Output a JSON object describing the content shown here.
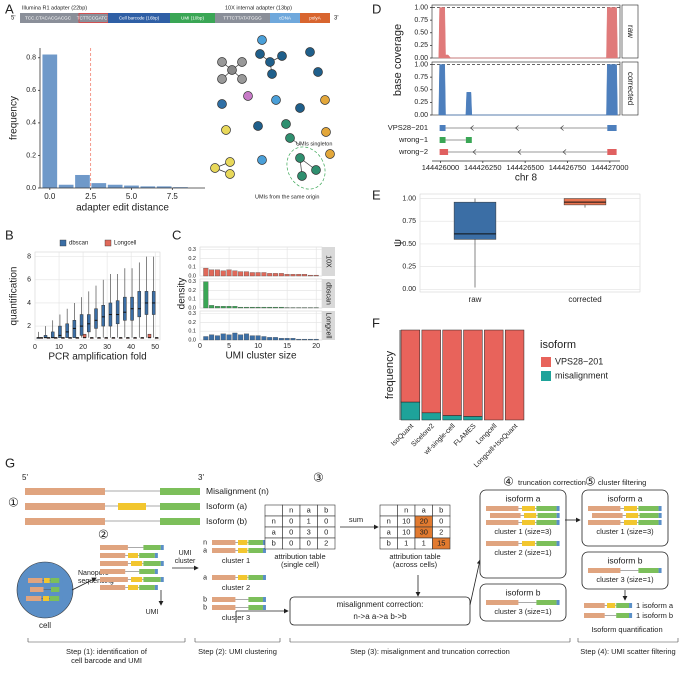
{
  "chart_data": [
    {
      "type": "bar",
      "xlabel": "adapter edit distance",
      "ylabel": "frequency",
      "color": "#6f99c9",
      "x": [
        0,
        1,
        2,
        3,
        4,
        5,
        6,
        7,
        8
      ],
      "values": [
        0.82,
        0.02,
        0.08,
        0.03,
        0.02,
        0.015,
        0.01,
        0.01,
        0.005
      ],
      "xlim": [
        -0.6,
        9.5
      ],
      "ylim": [
        0,
        0.86
      ],
      "xticks": [
        {
          "value": 0,
          "label": "0.0"
        },
        2.5,
        {
          "value": 5,
          "label": "5.0"
        },
        7.5
      ],
      "yticks": [
        {
          "value": 0,
          "label": "0.0"
        },
        0.2,
        0.4,
        0.6,
        0.8
      ],
      "vline": 2.5,
      "vline_color": "#f08070",
      "grid": false
    },
    {
      "type": "box",
      "xlabel": "PCR amplification fold",
      "ylabel": "quantification",
      "legend": "top",
      "grid": true,
      "x": [
        2,
        5,
        8,
        11,
        14,
        17,
        20,
        23,
        26,
        29,
        32,
        35,
        38,
        41,
        44,
        47,
        50
      ],
      "xlim": [
        0,
        52
      ],
      "ylim": [
        0.8,
        8.4
      ],
      "xticks": [
        0,
        10,
        20,
        30,
        40,
        50
      ],
      "yticks": [
        2,
        4,
        6,
        8
      ],
      "series": [
        {
          "name": "dbscan",
          "color": "#3b6ea5",
          "min": [
            1,
            1,
            1,
            1,
            1,
            1,
            1,
            1,
            1,
            1,
            1,
            1,
            1,
            1,
            1,
            1,
            1
          ],
          "q1": [
            1,
            1,
            1,
            1,
            1,
            1,
            1.2,
            1.5,
            1.8,
            2,
            2,
            2.2,
            2.5,
            2.5,
            2.8,
            3,
            3
          ],
          "median": [
            1,
            1,
            1,
            1.2,
            1.5,
            1.8,
            2,
            2.2,
            2.5,
            2.8,
            3,
            3,
            3.2,
            3.5,
            3.5,
            4,
            4
          ],
          "q3": [
            1,
            1.2,
            1.5,
            2,
            2.2,
            2.5,
            3,
            3,
            3.5,
            3.8,
            4,
            4.2,
            4.5,
            4.5,
            5,
            5,
            5
          ],
          "max": [
            1.5,
            2,
            2.5,
            3,
            3.5,
            4,
            4.5,
            5,
            5.5,
            6,
            6.5,
            6.5,
            7,
            7,
            7.5,
            8,
            8
          ]
        },
        {
          "name": "Longcell",
          "color": "#e0695a",
          "min": [
            1,
            1,
            1,
            1,
            1,
            1,
            1,
            1,
            1,
            1,
            1,
            1,
            1,
            1,
            1,
            1,
            1
          ],
          "q1": [
            1,
            1,
            1,
            1,
            1,
            1,
            1,
            1,
            1,
            1,
            1,
            1,
            1,
            1,
            1,
            1,
            1
          ],
          "median": [
            1,
            1,
            1,
            1,
            1,
            1,
            1,
            1,
            1,
            1,
            1,
            1,
            1,
            1,
            1,
            1,
            1
          ],
          "q3": [
            1,
            1,
            1,
            1,
            1,
            1,
            1.3,
            1,
            1,
            1,
            1,
            1,
            1,
            1,
            1,
            1.3,
            1
          ],
          "max": [
            1,
            1,
            1,
            1,
            1,
            1,
            1.3,
            1,
            1,
            1,
            1,
            1,
            1,
            1,
            1,
            1.3,
            1
          ]
        }
      ]
    },
    {
      "type": "facet_bar",
      "xlabel": "UMI cluster size",
      "ylabel": "density",
      "grid": true,
      "x": [
        1,
        2,
        3,
        4,
        5,
        6,
        7,
        8,
        9,
        10,
        11,
        12,
        13,
        14,
        15,
        16,
        17,
        18,
        19,
        20
      ],
      "xlim": [
        0,
        21
      ],
      "ylim": [
        0,
        0.33
      ],
      "xticks": [
        0,
        5,
        10,
        15,
        20
      ],
      "yticks": [
        {
          "value": 0,
          "label": "0.0"
        },
        0.1,
        0.2,
        0.3
      ],
      "series": [
        {
          "name": "10X",
          "color": "#e0695a",
          "values": [
            0.09,
            0.07,
            0.07,
            0.06,
            0.07,
            0.06,
            0.05,
            0.05,
            0.04,
            0.04,
            0.04,
            0.03,
            0.03,
            0.03,
            0.02,
            0.02,
            0.02,
            0.02,
            0.01,
            0.01
          ]
        },
        {
          "name": "dbscan",
          "color": "#3aa655",
          "values": [
            0.3,
            0.03,
            0.02,
            0.02,
            0.02,
            0.02,
            0.01,
            0.01,
            0.01,
            0.01,
            0.01,
            0.01,
            0.01,
            0.01,
            0.005,
            0.005,
            0.005,
            0.005,
            0.005,
            0.005
          ]
        },
        {
          "name": "Longcell",
          "color": "#3b6ea5",
          "values": [
            0.04,
            0.06,
            0.05,
            0.07,
            0.06,
            0.08,
            0.06,
            0.07,
            0.05,
            0.05,
            0.04,
            0.03,
            0.03,
            0.02,
            0.02,
            0.02,
            0.01,
            0.01,
            0.01,
            0.01
          ]
        }
      ]
    },
    {
      "type": "area",
      "xlabel": "chr 8",
      "ylabel": "base coverage",
      "hline": 1,
      "xlim": [
        144425950,
        144427060
      ],
      "ylim": [
        0,
        1.05
      ],
      "xticks": [
        144426000,
        144426250,
        144426500,
        144426750,
        144427000
      ],
      "yticks": [
        {
          "value": 0,
          "label": "0.00"
        },
        {
          "value": 0.25,
          "label": "0.25"
        },
        {
          "value": 0.5,
          "label": "0.50"
        },
        {
          "value": 0.75,
          "label": "0.75"
        },
        {
          "value": 1,
          "label": "1.00"
        }
      ],
      "series": [
        {
          "name": "raw",
          "color": "#e07a7a",
          "x": [
            144425990,
            144425995,
            144426025,
            144426030,
            144426045,
            144426060,
            144426980,
            144426985,
            144427040,
            144427045
          ],
          "values": [
            0,
            1,
            1,
            0.06,
            0.06,
            0,
            0,
            1,
            1,
            0
          ]
        },
        {
          "name": "corrected",
          "color": "#4d7fbd",
          "x": [
            144425990,
            144425995,
            144426025,
            144426030,
            144426150,
            144426155,
            144426180,
            144426185,
            144426980,
            144426985,
            144427040,
            144427045
          ],
          "values": [
            0,
            1,
            1,
            0,
            0,
            0.45,
            0.45,
            0,
            0,
            1,
            1,
            0
          ]
        }
      ],
      "isoforms": [
        {
          "name": "VPS28−201",
          "color": "#4d7fbd",
          "exons": [
            [
              144425995,
              144426030
            ],
            [
              144426985,
              144427040
            ]
          ]
        },
        {
          "name": "wrong−1",
          "color": "#3aa655",
          "exons": [
            [
              144425995,
              144426030
            ],
            [
              144426150,
              144426185
            ]
          ]
        },
        {
          "name": "wrong−2",
          "color": "#e06060",
          "exons": [
            [
              144425995,
              144426045
            ],
            [
              144426985,
              144427040
            ]
          ]
        }
      ]
    },
    {
      "type": "box",
      "ylabel": "ψ",
      "grid": true,
      "categories": [
        "raw",
        "corrected"
      ],
      "colors": [
        "#3b6ea5",
        "#e8734f"
      ],
      "min": [
        0.02,
        0.9
      ],
      "q1": [
        0.55,
        0.93
      ],
      "median": [
        0.61,
        0.96
      ],
      "q3": [
        0.96,
        1
      ],
      "max": [
        1,
        1
      ],
      "ylim": [
        -0.03,
        1.05
      ],
      "yticks": [
        {
          "value": 0,
          "label": "0.00"
        },
        {
          "value": 0.25,
          "label": "0.25"
        },
        {
          "value": 0.5,
          "label": "0.50"
        },
        {
          "value": 0.75,
          "label": "0.75"
        },
        {
          "value": 1,
          "label": "1.00"
        }
      ]
    },
    {
      "type": "stacked_bar",
      "ylabel": "frequency",
      "legend_title": "isoform",
      "grid": false,
      "ylim": [
        0,
        1
      ],
      "categories": [
        "IsoQuant",
        "Sicelore2",
        "wf-single-cell",
        "FLAMES",
        "Longcell",
        "Longcell+IsoQuant"
      ],
      "series": [
        {
          "name": "misalignment",
          "color": "#1ea39a",
          "values": [
            0.2,
            0.08,
            0.05,
            0.04,
            0,
            0
          ]
        },
        {
          "name": "VPS28−201",
          "color": "#e8635b",
          "values": [
            0.8,
            0.92,
            0.95,
            0.96,
            1,
            1
          ]
        }
      ]
    }
  ],
  "diagram": {
    "panel_labels": [
      "A",
      "B",
      "C",
      "D",
      "E",
      "F",
      "G"
    ],
    "adapter": {
      "left_label": "Illumina R1 adapter (22bp)",
      "right_label": "10X internal adapter (13bp)",
      "five": "5'",
      "three": "3'",
      "segments": [
        "TCC.CTACACGACGC",
        "TCTTCCGATCT",
        "Cell barcode (16bp)",
        "UMI (10bp)",
        "TTTCTTATATGGG",
        "cDNA",
        "polyA"
      ]
    },
    "network": {
      "singleton": "UMIs singleton",
      "same_origin": "UMIs from the same origin"
    },
    "workflow": {
      "five": "5'",
      "three": "3'",
      "isoforms": [
        "Misalignment (n)",
        "Isoform (a)",
        "Isoform (b)"
      ],
      "circled": [
        "①",
        "②",
        "③",
        "④",
        "⑤"
      ],
      "nanopore": [
        "Nanopore",
        "sequencing"
      ],
      "cell": "cell",
      "umi": "UMI",
      "umi_cluster": [
        "UMI",
        "cluster"
      ],
      "clusters": [
        "cluster 1",
        "cluster 2",
        "cluster 3"
      ],
      "read_tags": [
        "n",
        "a",
        "a",
        "b",
        "b"
      ],
      "sum": "sum",
      "table_single": {
        "header": [
          "n",
          "a",
          "b"
        ],
        "rows": [
          [
            "n",
            "0",
            "1",
            "0"
          ],
          [
            "a",
            "0",
            "3",
            "0"
          ],
          [
            "b",
            "0",
            "0",
            "2"
          ]
        ],
        "caption": [
          "attribution table",
          "(single cell)"
        ]
      },
      "table_across": {
        "header": [
          "n",
          "a",
          "b"
        ],
        "rows": [
          [
            "n",
            "10",
            "20",
            "0"
          ],
          [
            "a",
            "10",
            "30",
            "2"
          ],
          [
            "b",
            "1",
            "1",
            "15"
          ]
        ],
        "caption": [
          "attribution table",
          "(across cells)"
        ]
      },
      "correction": {
        "title": "misalignment correction:",
        "rule": "n->a a->a b->b"
      },
      "truncation": {
        "title": "truncation correction",
        "boxes": [
          {
            "isoform": "isoform a",
            "clusters": [
              "cluster 1 (size=3)",
              "cluster 2 (size=1)"
            ]
          },
          {
            "isoform": "isoform b",
            "clusters": [
              "cluster 3 (size=1)"
            ]
          }
        ]
      },
      "filtering": {
        "title": "cluster filtering",
        "boxes": [
          {
            "isoform": "isoform a",
            "clusters": [
              "cluster 1 (size=3)"
            ]
          },
          {
            "isoform": "isoform b",
            "clusters": [
              "cluster 3 (size=1)"
            ]
          }
        ],
        "results": [
          "1 isoform a",
          "1 isoform b"
        ],
        "quant": "Isoform quantification"
      },
      "steps": [
        [
          "Step (1): identification of",
          "cell barcode and UMI"
        ],
        [
          "Step (2): UMI clustering"
        ],
        [
          "Step (3): misalignment and truncation correction"
        ],
        [
          "Step (4): UMI scatter filtering"
        ]
      ]
    }
  }
}
